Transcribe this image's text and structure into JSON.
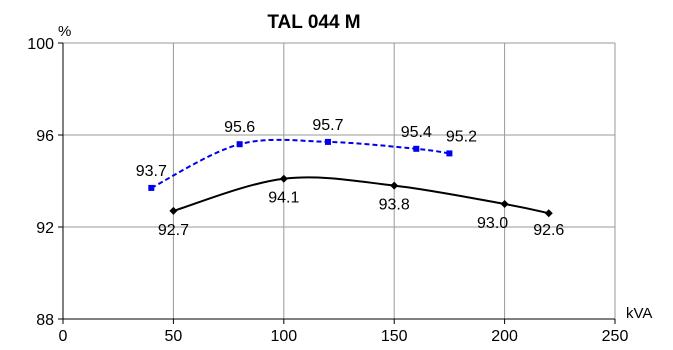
{
  "chart_data": {
    "type": "line",
    "title": "TAL 044 M",
    "xlabel": "kVA",
    "ylabel": "%",
    "xlim": [
      0,
      250
    ],
    "ylim": [
      88,
      100
    ],
    "x_ticks": [
      "0",
      "50",
      "100",
      "150",
      "200",
      "250"
    ],
    "y_ticks": [
      "88",
      "92",
      "96",
      "100"
    ],
    "grid": true,
    "series": [
      {
        "style": "dashed",
        "color": "#0000ee",
        "marker": "square",
        "x": [
          40,
          80,
          120,
          160,
          175
        ],
        "values": [
          93.7,
          95.6,
          95.7,
          95.4,
          95.2
        ],
        "labels": [
          "93.7",
          "95.6",
          "95.7",
          "95.4",
          "95.2"
        ]
      },
      {
        "style": "solid",
        "color": "#000000",
        "marker": "diamond",
        "x": [
          50,
          100,
          150,
          200,
          220
        ],
        "values": [
          92.7,
          94.1,
          93.8,
          93.0,
          92.6
        ],
        "labels": [
          "92.7",
          "94.1",
          "93.8",
          "93.0",
          "92.6"
        ]
      }
    ]
  }
}
